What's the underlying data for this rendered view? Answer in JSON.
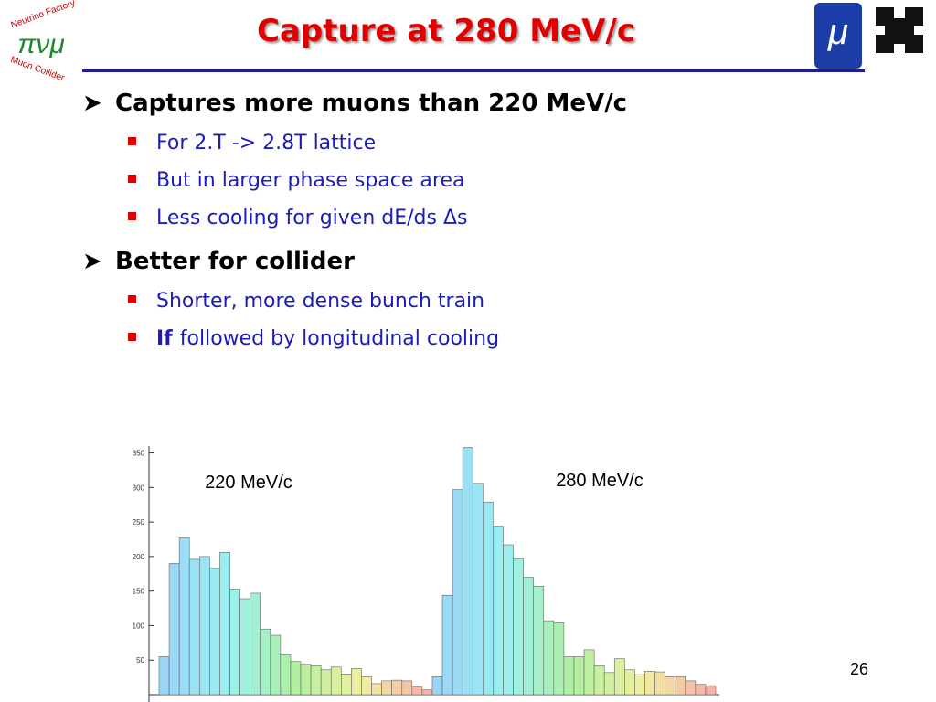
{
  "header": {
    "title": "Capture at 280 MeV/c",
    "logo_left": {
      "line1": "Neutrino Factory",
      "line2": "Muon Collider",
      "symbols": "πνμ"
    },
    "logo_right": {
      "symbol": "μ"
    }
  },
  "bullets": [
    {
      "text": "Captures more muons than 220 MeV/c",
      "items": [
        {
          "text": "For 2.T -> 2.8T lattice"
        },
        {
          "text": "But in larger phase space area"
        },
        {
          "text": "Less cooling for given dE/ds Δs"
        }
      ]
    },
    {
      "text": "Better for collider",
      "items": [
        {
          "text": "Shorter, more dense bunch train"
        },
        {
          "bold": "If",
          "text": "followed by longitudinal cooling"
        }
      ]
    }
  ],
  "page_number": "26",
  "chart_data": {
    "type": "bar",
    "categories": [
      null,
      null,
      null,
      null,
      null,
      null,
      null,
      null,
      null,
      null,
      null,
      null,
      null,
      null,
      null,
      null,
      null,
      null,
      null,
      null,
      null,
      null,
      null,
      null,
      null,
      null,
      null,
      null,
      null,
      null,
      null,
      null,
      null,
      null,
      null,
      null,
      null,
      null,
      null,
      null,
      null,
      null,
      null,
      null,
      null,
      null,
      null,
      null,
      null,
      null,
      null,
      null,
      null,
      null,
      null
    ],
    "series": [
      {
        "name": "220 MeV/c",
        "values": [
          55,
          190,
          227,
          196,
          200,
          183,
          206,
          153,
          139,
          147,
          95,
          86,
          58,
          48,
          44,
          42,
          36,
          40,
          30,
          38,
          26,
          16,
          20,
          21,
          20,
          11,
          7,
          null,
          null,
          null,
          null,
          null,
          null,
          null,
          null,
          null,
          null,
          null,
          null,
          null,
          null,
          null,
          null,
          null,
          null,
          null,
          null,
          null,
          null,
          null,
          null,
          null,
          null,
          null,
          null
        ]
      },
      {
        "name": "280 MeV/c",
        "values": [
          null,
          null,
          null,
          null,
          null,
          null,
          null,
          null,
          null,
          null,
          null,
          null,
          null,
          null,
          null,
          null,
          null,
          null,
          null,
          null,
          null,
          null,
          null,
          null,
          null,
          null,
          null,
          26,
          144,
          297,
          358,
          306,
          279,
          244,
          217,
          197,
          170,
          157,
          107,
          104,
          55,
          55,
          65,
          42,
          32,
          52,
          36,
          29,
          34,
          33,
          26,
          26,
          20,
          15,
          13
        ]
      }
    ],
    "color_stops": [
      "#9ad4f8",
      "#9af0f0",
      "#b0f0a0",
      "#f0f0a0",
      "#f8b0a8"
    ],
    "ylim": [
      0,
      360
    ],
    "yticks": [
      50,
      100,
      150,
      200,
      250,
      300,
      350
    ]
  }
}
